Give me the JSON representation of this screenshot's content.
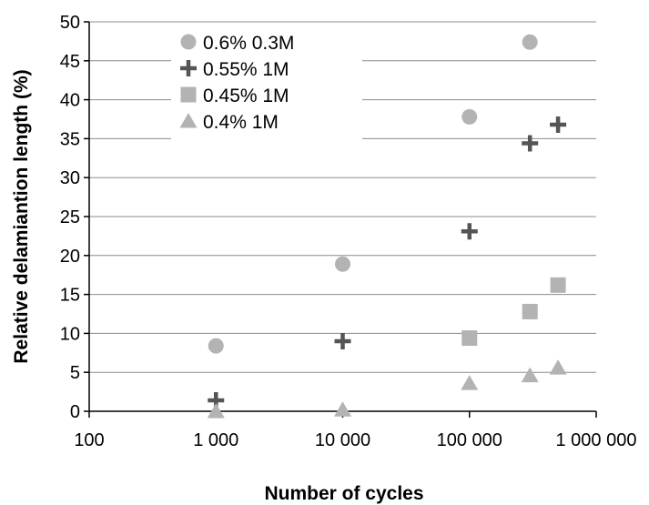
{
  "chart_data": {
    "type": "scatter",
    "title": "",
    "xlabel": "Number of cycles",
    "ylabel": "Relative delamiantion length (%)",
    "xscale": "log",
    "xlim": [
      100,
      1000000
    ],
    "ylim": [
      0,
      50
    ],
    "x_ticks": [
      100,
      1000,
      10000,
      100000,
      1000000
    ],
    "x_tick_labels": [
      "100",
      "1 000",
      "10 000",
      "100 000",
      "1 000 000"
    ],
    "y_ticks": [
      0,
      5,
      10,
      15,
      20,
      25,
      30,
      35,
      40,
      45,
      50
    ],
    "y_tick_labels": [
      "0",
      "5",
      "10",
      "15",
      "20",
      "25",
      "30",
      "35",
      "40",
      "45",
      "50"
    ],
    "grid": "horizontal",
    "legend_position": "top-left",
    "series": [
      {
        "name": "0.6% 0.3M",
        "marker": "circle",
        "color": "#b3b3b3",
        "points": [
          [
            1000,
            8.4
          ],
          [
            10000,
            18.9
          ],
          [
            100000,
            37.8
          ],
          [
            300000,
            47.4
          ]
        ]
      },
      {
        "name": "0.55% 1M",
        "marker": "plus",
        "color": "#555555",
        "points": [
          [
            1000,
            1.4
          ],
          [
            10000,
            9.0
          ],
          [
            100000,
            23.1
          ],
          [
            300000,
            34.4
          ],
          [
            500000,
            36.8
          ]
        ]
      },
      {
        "name": "0.45% 1M",
        "marker": "square",
        "color": "#b3b3b3",
        "points": [
          [
            100000,
            9.4
          ],
          [
            300000,
            12.8
          ],
          [
            500000,
            16.2
          ]
        ]
      },
      {
        "name": "0.4% 1M",
        "marker": "triangle",
        "color": "#b3b3b3",
        "points": [
          [
            1000,
            0.0
          ],
          [
            10000,
            0.2
          ],
          [
            100000,
            3.6
          ],
          [
            300000,
            4.6
          ],
          [
            500000,
            5.6
          ]
        ]
      }
    ]
  }
}
